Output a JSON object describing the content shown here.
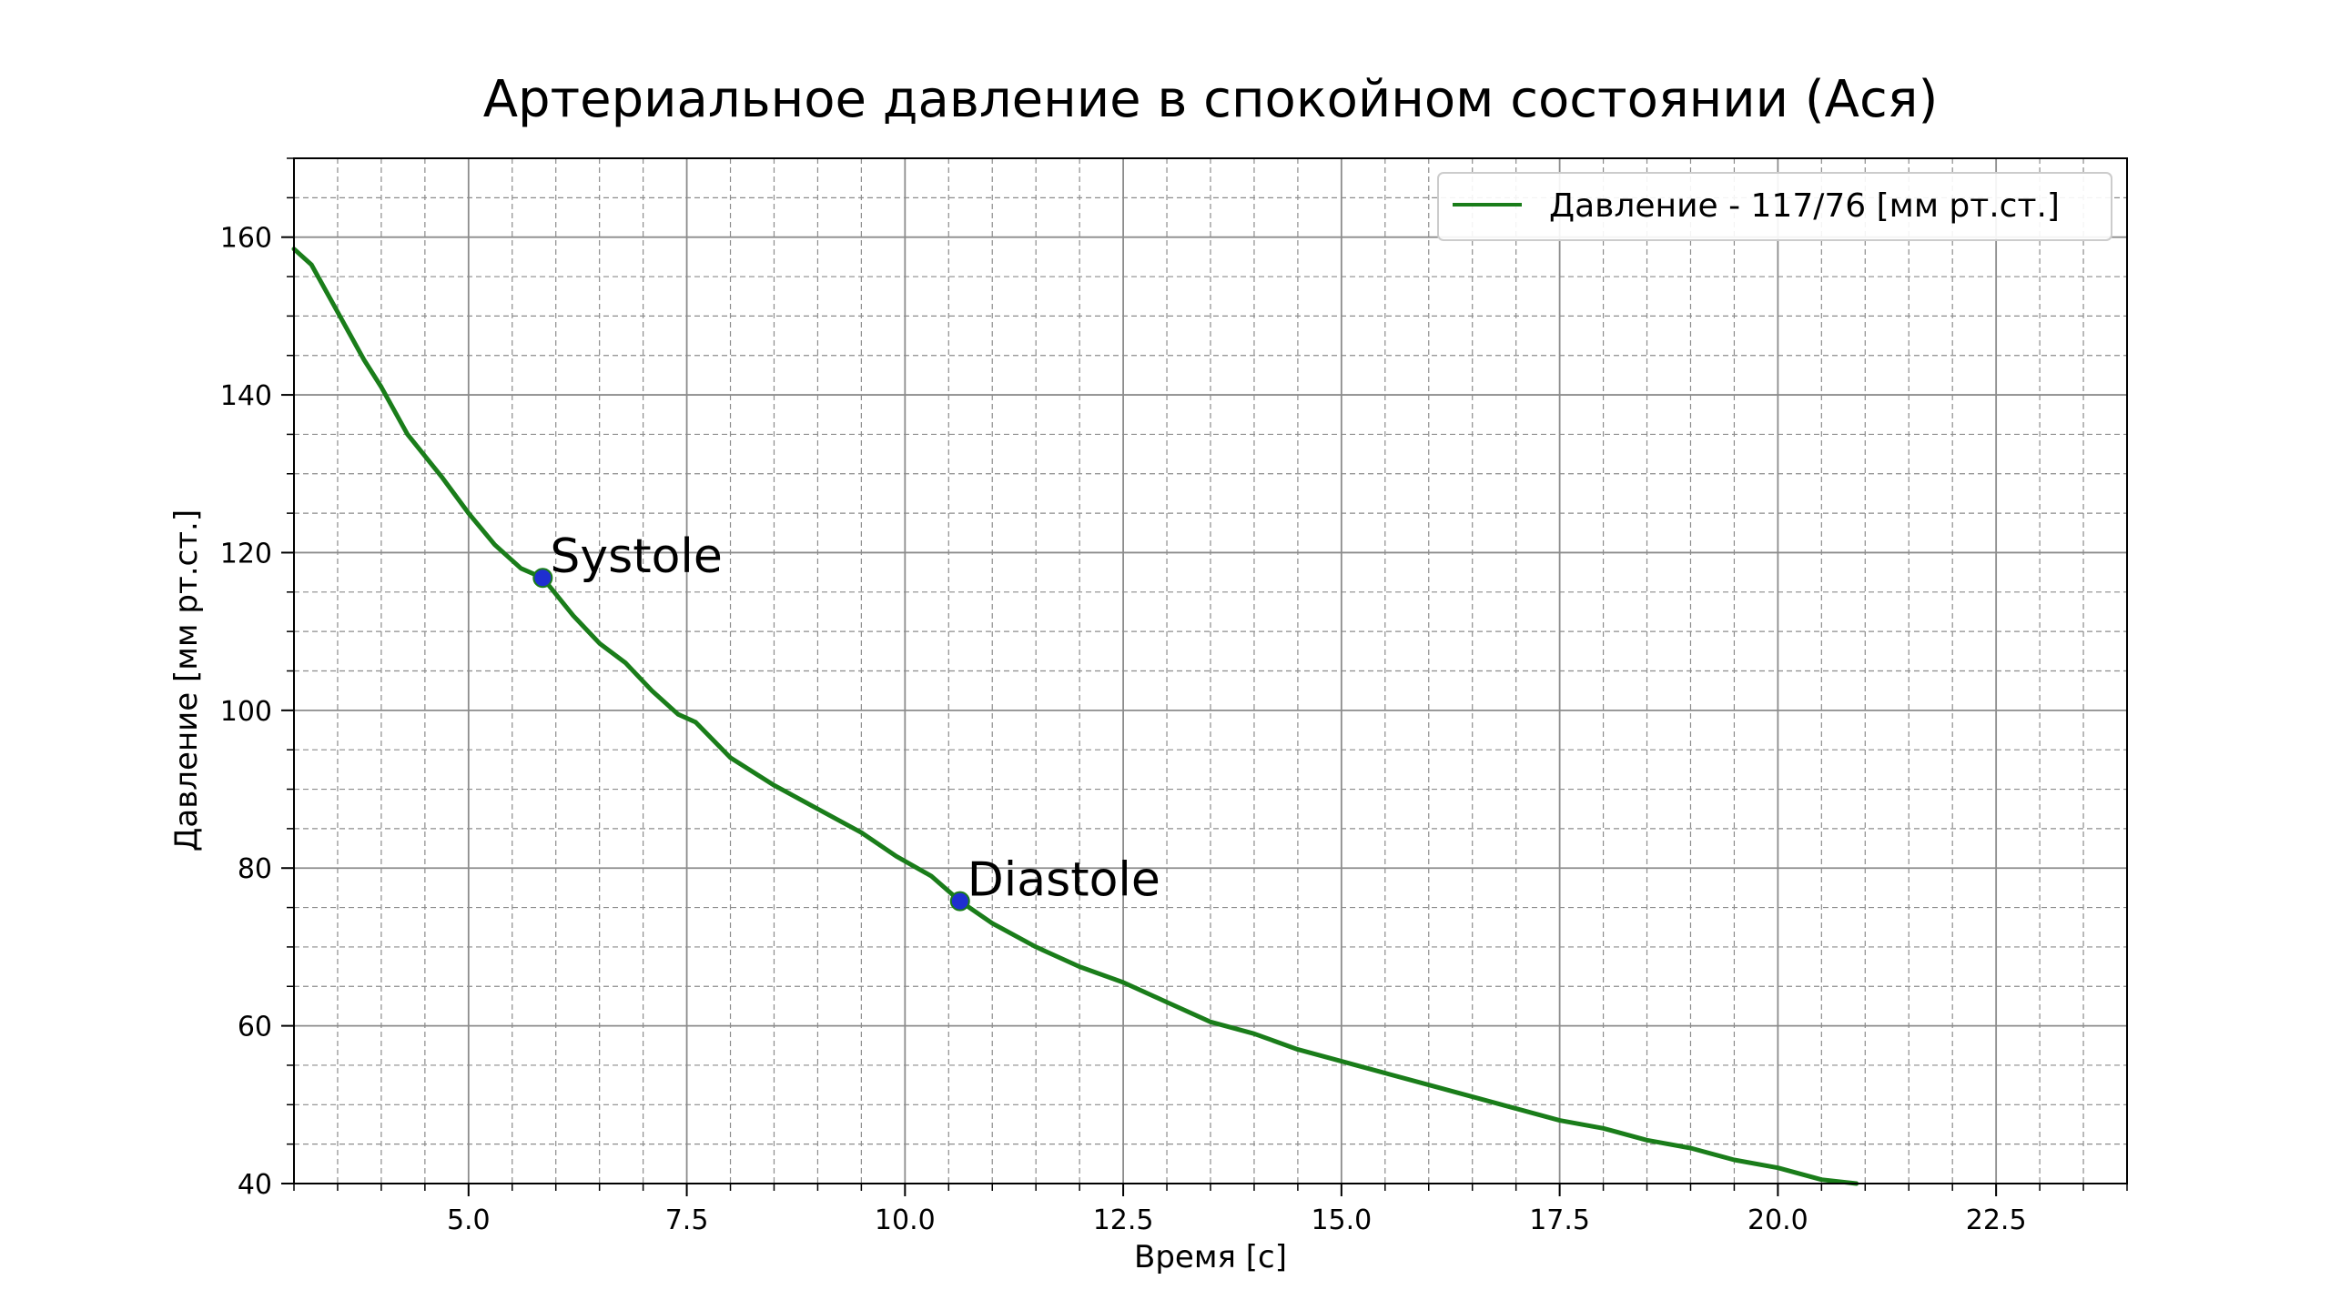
{
  "chart_data": {
    "type": "line",
    "title": "Артериальное давление в спокойном состоянии (Ася)",
    "xlabel": "Время [с]",
    "ylabel": "Давление [мм рт.ст.]",
    "xlim": [
      3.0,
      24.0
    ],
    "ylim": [
      40,
      170
    ],
    "xticks": [
      5.0,
      7.5,
      10.0,
      12.5,
      15.0,
      17.5,
      20.0,
      22.5
    ],
    "xtick_labels": [
      "5.0",
      "7.5",
      "10.0",
      "12.5",
      "15.0",
      "17.5",
      "20.0",
      "22.5"
    ],
    "yticks": [
      40,
      60,
      80,
      100,
      120,
      140,
      160
    ],
    "ytick_labels": [
      "40",
      "60",
      "80",
      "100",
      "120",
      "140",
      "160"
    ],
    "grid": true,
    "legend_position": "top-right",
    "colors": {
      "line": "#1a7d1a",
      "marker": "#1f2fd0",
      "marker_edge": "#1a7d1a",
      "grid": "#8c8c8c"
    },
    "series": [
      {
        "name": "Давление - 117/76 [мм рт.ст.]",
        "x": [
          3.0,
          3.2,
          3.5,
          3.8,
          4.0,
          4.3,
          4.7,
          5.0,
          5.3,
          5.6,
          5.85,
          6.2,
          6.5,
          6.8,
          7.1,
          7.4,
          7.6,
          8.0,
          8.5,
          9.0,
          9.5,
          9.9,
          10.3,
          10.63,
          11.0,
          11.5,
          12.0,
          12.5,
          13.0,
          13.5,
          14.0,
          14.5,
          15.0,
          15.5,
          16.0,
          16.5,
          17.0,
          17.5,
          18.0,
          18.5,
          19.0,
          19.5,
          20.0,
          20.5,
          20.9
        ],
        "y": [
          158.5,
          156.5,
          150.5,
          144.5,
          141.0,
          135.0,
          129.5,
          125.0,
          121.0,
          118.0,
          116.8,
          112.0,
          108.5,
          106.0,
          102.5,
          99.5,
          98.5,
          94.0,
          90.5,
          87.5,
          84.5,
          81.5,
          79.0,
          75.8,
          73.0,
          70.0,
          67.5,
          65.5,
          63.0,
          60.5,
          59.0,
          57.0,
          55.5,
          54.0,
          52.5,
          51.0,
          49.5,
          48.0,
          47.0,
          45.5,
          44.5,
          43.0,
          42.0,
          40.5,
          40.0
        ]
      }
    ],
    "annotations": [
      {
        "label": "Systole",
        "x": 5.85,
        "y": 116.8
      },
      {
        "label": "Diastole",
        "x": 10.63,
        "y": 75.8
      }
    ]
  }
}
